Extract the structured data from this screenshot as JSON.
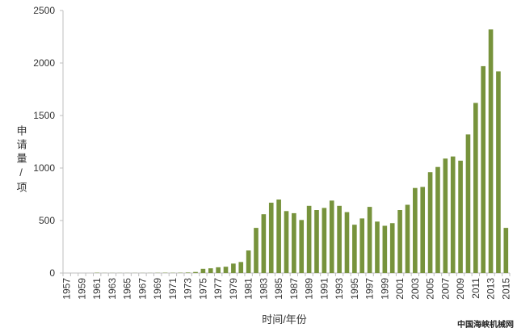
{
  "chart_data": {
    "type": "bar",
    "y_label": "申请量/项",
    "x_label": "时间/年份",
    "watermark": "中国海峡机械网",
    "color": "#77933c",
    "grid": false,
    "ylim": [
      0,
      2500
    ],
    "yticks": [
      0,
      500,
      1000,
      1500,
      2000,
      2500
    ],
    "categories": [
      "1957",
      null,
      "1959",
      null,
      "1961",
      null,
      "1963",
      null,
      "1965",
      null,
      "1967",
      null,
      "1969",
      null,
      "1971",
      null,
      "1973",
      null,
      "1975",
      null,
      "1977",
      null,
      "1979",
      null,
      "1981",
      null,
      "1983",
      null,
      "1985",
      null,
      "1987",
      null,
      "1989",
      null,
      "1991",
      null,
      "1993",
      null,
      "1995",
      null,
      "1997",
      null,
      "1999",
      null,
      "2001",
      null,
      "2003",
      null,
      "2005",
      null,
      "2007",
      null,
      "2009",
      null,
      "2011",
      null,
      "2013",
      null,
      "2015"
    ],
    "values": [
      0,
      0,
      0,
      0,
      3,
      1,
      1,
      1,
      1,
      1,
      1,
      1,
      2,
      3,
      2,
      3,
      5,
      10,
      40,
      45,
      55,
      60,
      90,
      105,
      215,
      430,
      560,
      670,
      700,
      590,
      570,
      505,
      640,
      600,
      620,
      690,
      640,
      580,
      460,
      520,
      630,
      490,
      450,
      475,
      600,
      650,
      810,
      820,
      960,
      1010,
      1090,
      1110,
      1070,
      1320,
      1620,
      1970,
      2320,
      1920,
      430
    ]
  }
}
